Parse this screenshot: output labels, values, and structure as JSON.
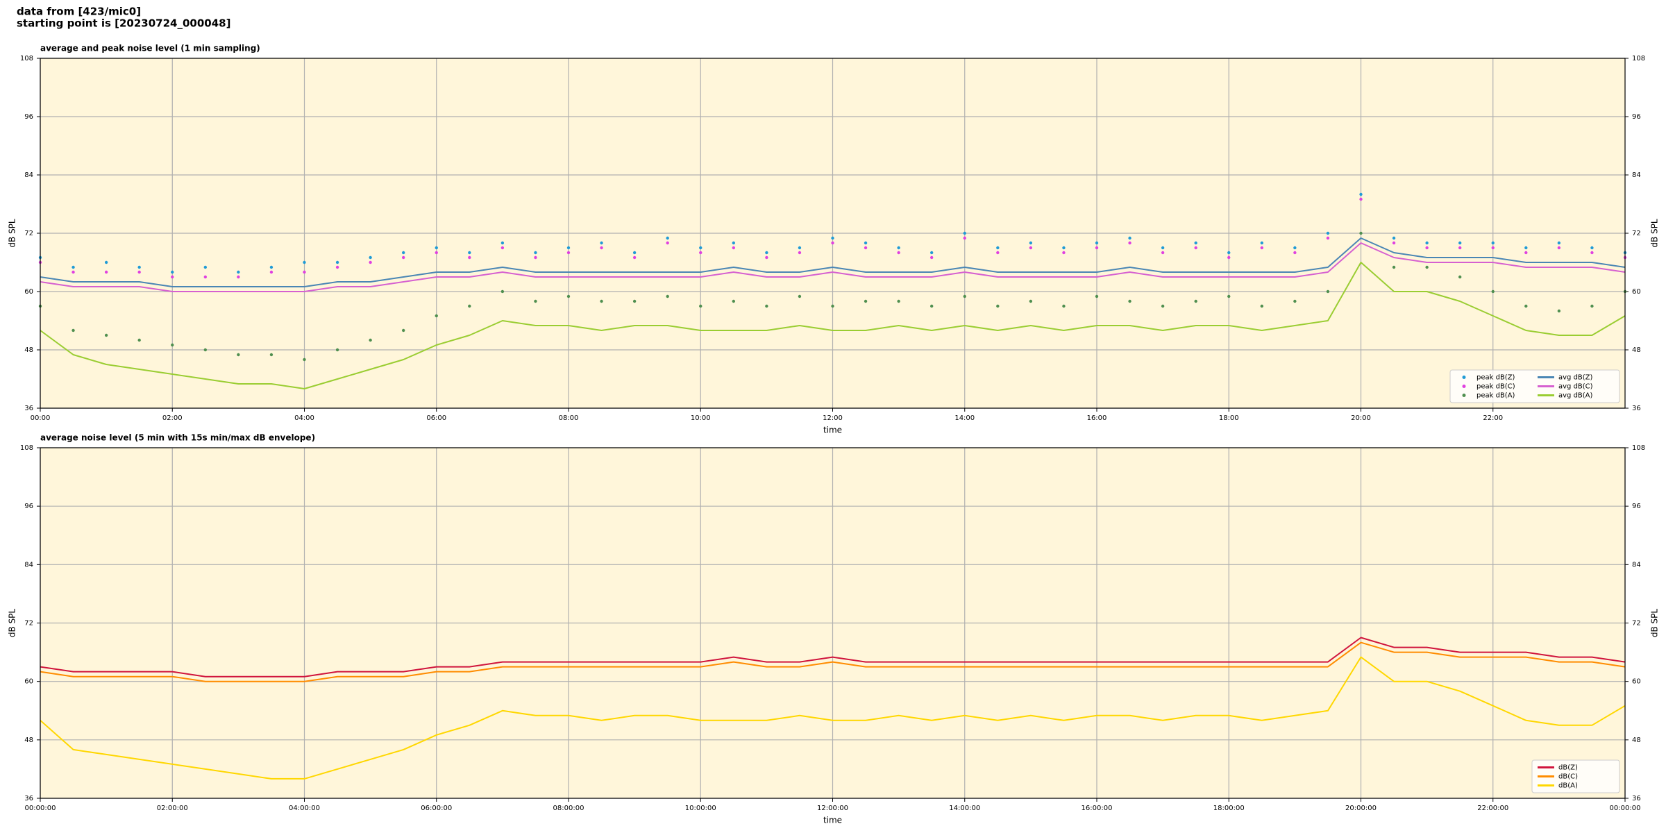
{
  "header": [
    "data from [423/mic0]",
    "starting point is [20230724_000048]"
  ],
  "chart_data": [
    {
      "type": "line",
      "title": "average and peak noise level (1 min sampling)",
      "x_label": "time",
      "y_label": "dB SPL",
      "x": [
        0,
        30,
        60,
        90,
        120,
        150,
        180,
        210,
        240,
        270,
        300,
        330,
        360,
        390,
        420,
        450,
        480,
        510,
        540,
        570,
        600,
        630,
        660,
        690,
        720,
        750,
        780,
        810,
        840,
        870,
        900,
        930,
        960,
        990,
        1020,
        1050,
        1080,
        1110,
        1140,
        1170,
        1200,
        1230,
        1260,
        1290,
        1320,
        1350,
        1380,
        1410,
        1440
      ],
      "xlim": [
        0,
        1440
      ],
      "xticks": [
        {
          "value": 0,
          "label": "00:00"
        },
        {
          "value": 120,
          "label": "02:00"
        },
        {
          "value": 240,
          "label": "04:00"
        },
        {
          "value": 360,
          "label": "06:00"
        },
        {
          "value": 480,
          "label": "08:00"
        },
        {
          "value": 600,
          "label": "10:00"
        },
        {
          "value": 720,
          "label": "12:00"
        },
        {
          "value": 840,
          "label": "14:00"
        },
        {
          "value": 960,
          "label": "16:00"
        },
        {
          "value": 1080,
          "label": "18:00"
        },
        {
          "value": 1200,
          "label": "20:00"
        },
        {
          "value": 1320,
          "label": "22:00"
        }
      ],
      "ylim": [
        36,
        108
      ],
      "yticks": [
        36,
        48,
        60,
        72,
        84,
        96,
        108
      ],
      "grid": true,
      "legend": "lower right",
      "legend_columns": 2,
      "series": [
        {
          "name": "peak dB(Z)",
          "type": "scatter",
          "color": "#1f9bd6",
          "values": [
            67,
            65,
            66,
            65,
            64,
            65,
            64,
            65,
            66,
            66,
            67,
            68,
            69,
            68,
            70,
            68,
            69,
            70,
            68,
            71,
            69,
            70,
            68,
            69,
            71,
            70,
            69,
            68,
            72,
            69,
            70,
            69,
            70,
            71,
            69,
            70,
            68,
            70,
            69,
            72,
            80,
            71,
            70,
            70,
            70,
            69,
            70,
            69,
            68
          ]
        },
        {
          "name": "peak dB(C)",
          "type": "scatter",
          "color": "#e040e0",
          "values": [
            66,
            64,
            64,
            64,
            63,
            63,
            63,
            64,
            64,
            65,
            66,
            67,
            68,
            67,
            69,
            67,
            68,
            69,
            67,
            70,
            68,
            69,
            67,
            68,
            70,
            69,
            68,
            67,
            71,
            68,
            69,
            68,
            69,
            70,
            68,
            69,
            67,
            69,
            68,
            71,
            79,
            70,
            69,
            69,
            69,
            68,
            69,
            68,
            67
          ]
        },
        {
          "name": "peak dB(A)",
          "type": "scatter",
          "color": "#4f8f4f",
          "values": [
            57,
            52,
            51,
            50,
            49,
            48,
            47,
            47,
            46,
            48,
            50,
            52,
            55,
            57,
            60,
            58,
            59,
            58,
            58,
            59,
            57,
            58,
            57,
            59,
            57,
            58,
            58,
            57,
            59,
            57,
            58,
            57,
            59,
            58,
            57,
            58,
            59,
            57,
            58,
            60,
            72,
            65,
            65,
            63,
            60,
            57,
            56,
            57,
            60
          ]
        },
        {
          "name": "avg dB(Z)",
          "type": "line",
          "color": "#4a86b4",
          "values": [
            63,
            62,
            62,
            62,
            61,
            61,
            61,
            61,
            61,
            62,
            62,
            63,
            64,
            64,
            65,
            64,
            64,
            64,
            64,
            64,
            64,
            65,
            64,
            64,
            65,
            64,
            64,
            64,
            65,
            64,
            64,
            64,
            64,
            65,
            64,
            64,
            64,
            64,
            64,
            65,
            71,
            68,
            67,
            67,
            67,
            66,
            66,
            66,
            65
          ]
        },
        {
          "name": "avg dB(C)",
          "type": "line",
          "color": "#d660d0",
          "values": [
            62,
            61,
            61,
            61,
            60,
            60,
            60,
            60,
            60,
            61,
            61,
            62,
            63,
            63,
            64,
            63,
            63,
            63,
            63,
            63,
            63,
            64,
            63,
            63,
            64,
            63,
            63,
            63,
            64,
            63,
            63,
            63,
            63,
            64,
            63,
            63,
            63,
            63,
            63,
            64,
            70,
            67,
            66,
            66,
            66,
            65,
            65,
            65,
            64
          ]
        },
        {
          "name": "avg dB(A)",
          "type": "line",
          "color": "#9acd32",
          "values": [
            52,
            47,
            45,
            44,
            43,
            42,
            41,
            41,
            40,
            42,
            44,
            46,
            49,
            51,
            54,
            53,
            53,
            52,
            53,
            53,
            52,
            52,
            52,
            53,
            52,
            52,
            53,
            52,
            53,
            52,
            53,
            52,
            53,
            53,
            52,
            53,
            53,
            52,
            53,
            54,
            66,
            60,
            60,
            58,
            55,
            52,
            51,
            51,
            55
          ]
        }
      ]
    },
    {
      "type": "line",
      "title": "average noise level (5 min with 15s min/max dB envelope)",
      "x_label": "time",
      "y_label": "dB SPL",
      "x": [
        0,
        30,
        60,
        90,
        120,
        150,
        180,
        210,
        240,
        270,
        300,
        330,
        360,
        390,
        420,
        450,
        480,
        510,
        540,
        570,
        600,
        630,
        660,
        690,
        720,
        750,
        780,
        810,
        840,
        870,
        900,
        930,
        960,
        990,
        1020,
        1050,
        1080,
        1110,
        1140,
        1170,
        1200,
        1230,
        1260,
        1290,
        1320,
        1350,
        1380,
        1410,
        1440
      ],
      "xlim": [
        0,
        1440
      ],
      "xticks": [
        {
          "value": 0,
          "label": "00:00:00"
        },
        {
          "value": 120,
          "label": "02:00:00"
        },
        {
          "value": 240,
          "label": "04:00:00"
        },
        {
          "value": 360,
          "label": "06:00:00"
        },
        {
          "value": 480,
          "label": "08:00:00"
        },
        {
          "value": 600,
          "label": "10:00:00"
        },
        {
          "value": 720,
          "label": "12:00:00"
        },
        {
          "value": 840,
          "label": "14:00:00"
        },
        {
          "value": 960,
          "label": "16:00:00"
        },
        {
          "value": 1080,
          "label": "18:00:00"
        },
        {
          "value": 1200,
          "label": "20:00:00"
        },
        {
          "value": 1320,
          "label": "22:00:00"
        },
        {
          "value": 1440,
          "label": "00:00:00"
        }
      ],
      "ylim": [
        36,
        108
      ],
      "yticks": [
        36,
        48,
        60,
        72,
        84,
        96,
        108
      ],
      "grid": true,
      "legend": "lower right",
      "legend_columns": 1,
      "series": [
        {
          "name": "dB(Z)",
          "type": "line",
          "color": "#d0143c",
          "values": [
            63,
            62,
            62,
            62,
            62,
            61,
            61,
            61,
            61,
            62,
            62,
            62,
            63,
            63,
            64,
            64,
            64,
            64,
            64,
            64,
            64,
            65,
            64,
            64,
            65,
            64,
            64,
            64,
            64,
            64,
            64,
            64,
            64,
            64,
            64,
            64,
            64,
            64,
            64,
            64,
            69,
            67,
            67,
            66,
            66,
            66,
            65,
            65,
            64
          ]
        },
        {
          "name": "dB(C)",
          "type": "line",
          "color": "#ff8c00",
          "values": [
            62,
            61,
            61,
            61,
            61,
            60,
            60,
            60,
            60,
            61,
            61,
            61,
            62,
            62,
            63,
            63,
            63,
            63,
            63,
            63,
            63,
            64,
            63,
            63,
            64,
            63,
            63,
            63,
            63,
            63,
            63,
            63,
            63,
            63,
            63,
            63,
            63,
            63,
            63,
            63,
            68,
            66,
            66,
            65,
            65,
            65,
            64,
            64,
            63
          ]
        },
        {
          "name": "dB(A)",
          "type": "line",
          "color": "#ffd700",
          "values": [
            52,
            46,
            45,
            44,
            43,
            42,
            41,
            40,
            40,
            42,
            44,
            46,
            49,
            51,
            54,
            53,
            53,
            52,
            53,
            53,
            52,
            52,
            52,
            53,
            52,
            52,
            53,
            52,
            53,
            52,
            53,
            52,
            53,
            53,
            52,
            53,
            53,
            52,
            53,
            54,
            65,
            60,
            60,
            58,
            55,
            52,
            51,
            51,
            55
          ]
        }
      ]
    }
  ]
}
